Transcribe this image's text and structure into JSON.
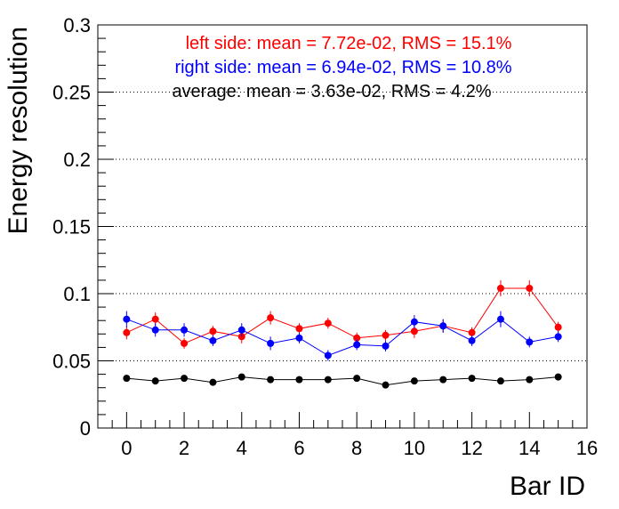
{
  "chart_data": {
    "type": "scatter",
    "xlabel": "Bar ID",
    "ylabel": "Energy resolution",
    "xlim": [
      -1,
      16
    ],
    "ylim": [
      0,
      0.3
    ],
    "grid": "horizontal dotted",
    "legend_placement": "top",
    "x_ticks": [
      "0",
      "2",
      "4",
      "6",
      "8",
      "10",
      "12",
      "14",
      "16"
    ],
    "y_ticks": [
      "0",
      "0.05",
      "0.1",
      "0.15",
      "0.2",
      "0.25",
      "0.3"
    ],
    "x": [
      0,
      1,
      2,
      3,
      4,
      5,
      6,
      7,
      8,
      9,
      10,
      11,
      12,
      13,
      14,
      15
    ],
    "series": [
      {
        "name": "left side",
        "label": "left side:   mean = 7.72e-02, RMS = 15.1%",
        "color": "#ff0000",
        "values": [
          0.071,
          0.081,
          0.063,
          0.072,
          0.068,
          0.082,
          0.074,
          0.078,
          0.067,
          0.069,
          0.072,
          0.076,
          0.071,
          0.104,
          0.104,
          0.075
        ],
        "errors": [
          0.005,
          0.005,
          0.004,
          0.004,
          0.005,
          0.005,
          0.004,
          0.004,
          0.004,
          0.004,
          0.005,
          0.005,
          0.004,
          0.006,
          0.006,
          0.004
        ]
      },
      {
        "name": "right side",
        "label": "right side:   mean = 6.94e-02, RMS = 10.8%",
        "color": "#0000ff",
        "values": [
          0.081,
          0.073,
          0.073,
          0.065,
          0.073,
          0.063,
          0.067,
          0.054,
          0.062,
          0.061,
          0.079,
          0.076,
          0.065,
          0.081,
          0.064,
          0.068
        ],
        "errors": [
          0.006,
          0.005,
          0.005,
          0.004,
          0.005,
          0.005,
          0.004,
          0.004,
          0.004,
          0.004,
          0.005,
          0.005,
          0.004,
          0.006,
          0.004,
          0.004
        ]
      },
      {
        "name": "average",
        "label": "average:   mean = 3.63e-02, RMS = 4.2%",
        "color": "#000000",
        "values": [
          0.037,
          0.035,
          0.037,
          0.034,
          0.038,
          0.036,
          0.036,
          0.036,
          0.037,
          0.032,
          0.035,
          0.036,
          0.037,
          0.035,
          0.036,
          0.038
        ],
        "errors": [
          0.001,
          0.001,
          0.001,
          0.001,
          0.001,
          0.001,
          0.001,
          0.001,
          0.001,
          0.001,
          0.001,
          0.001,
          0.001,
          0.001,
          0.001,
          0.001
        ]
      }
    ]
  }
}
